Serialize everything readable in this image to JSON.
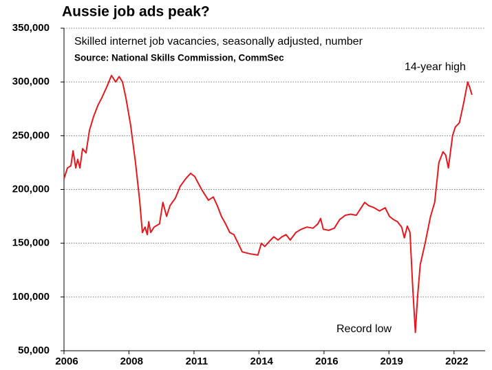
{
  "chart_data": {
    "type": "line",
    "title": "Aussie job ads peak?",
    "subtitle": "Skilled internet job vacancies, seasonally adjusted, number",
    "source": "Source: National Skills Commission, CommSec",
    "annotations": [
      "14-year high",
      "Record low"
    ],
    "grid": true,
    "xlim": [
      2006,
      2023.2
    ],
    "xticks": [
      2006,
      {
        "value": 2008.65,
        "label": "2008"
      },
      {
        "value": 2011.31,
        "label": "2011"
      },
      {
        "value": 2013.96,
        "label": "2014"
      },
      {
        "value": 2016.62,
        "label": "2016"
      },
      {
        "value": 2019.27,
        "label": "2019"
      },
      {
        "value": 2021.93,
        "label": "2022"
      }
    ],
    "ylim": [
      50000,
      350000
    ],
    "yticks": [
      {
        "value": 50000,
        "label": "50,000"
      },
      {
        "value": 100000,
        "label": "100,000"
      },
      {
        "value": 150000,
        "label": "150,000"
      },
      {
        "value": 200000,
        "label": "200,000"
      },
      {
        "value": 250000,
        "label": "250,000"
      },
      {
        "value": 300000,
        "label": "300,000"
      },
      {
        "value": 350000,
        "label": "350,000"
      }
    ],
    "x": [
      2006.0,
      2006.14,
      2006.28,
      2006.37,
      2006.48,
      2006.56,
      2006.65,
      2006.76,
      2006.9,
      2007.04,
      2007.21,
      2007.38,
      2007.54,
      2007.74,
      2007.94,
      2008.11,
      2008.25,
      2008.39,
      2008.53,
      2008.72,
      2008.92,
      2009.09,
      2009.2,
      2009.31,
      2009.4,
      2009.46,
      2009.54,
      2009.68,
      2009.9,
      2010.04,
      2010.19,
      2010.33,
      2010.55,
      2010.75,
      2010.97,
      2011.17,
      2011.34,
      2011.48,
      2011.62,
      2011.76,
      2011.9,
      2012.1,
      2012.26,
      2012.43,
      2012.6,
      2012.77,
      2012.94,
      2013.11,
      2013.28,
      2013.44,
      2013.64,
      2013.92,
      2014.06,
      2014.2,
      2014.4,
      2014.57,
      2014.74,
      2014.9,
      2015.07,
      2015.24,
      2015.47,
      2015.69,
      2015.92,
      2016.17,
      2016.37,
      2016.48,
      2016.59,
      2016.81,
      2017.04,
      2017.26,
      2017.49,
      2017.71,
      2017.94,
      2018.11,
      2018.28,
      2018.44,
      2018.67,
      2018.89,
      2019.12,
      2019.29,
      2019.46,
      2019.62,
      2019.79,
      2019.9,
      2020.02,
      2020.13,
      2020.24,
      2020.35,
      2020.44,
      2020.55,
      2020.75,
      2020.97,
      2021.14,
      2021.31,
      2021.48,
      2021.59,
      2021.7,
      2021.87,
      2021.98,
      2022.15,
      2022.32,
      2022.49,
      2022.57,
      2022.66
    ],
    "series": [
      {
        "name": "Skilled internet job vacancies",
        "color": "#e8171d",
        "values": [
          210000,
          220000,
          222000,
          236000,
          220000,
          228000,
          220000,
          238000,
          234000,
          255000,
          268000,
          278000,
          285000,
          295000,
          306000,
          300000,
          305000,
          300000,
          285000,
          260000,
          225000,
          190000,
          160000,
          165000,
          158000,
          170000,
          160000,
          165000,
          168000,
          188000,
          175000,
          185000,
          192000,
          203000,
          210000,
          215000,
          212000,
          206000,
          200000,
          195000,
          190000,
          193000,
          185000,
          175000,
          168000,
          160000,
          158000,
          150000,
          142000,
          141000,
          140000,
          139000,
          150000,
          147000,
          152000,
          156000,
          153000,
          156000,
          158000,
          153000,
          160000,
          163000,
          165000,
          164000,
          168000,
          173000,
          163000,
          162000,
          164000,
          172000,
          176000,
          177000,
          176000,
          182000,
          188000,
          185000,
          183000,
          180000,
          183000,
          175000,
          172000,
          170000,
          165000,
          155000,
          166000,
          160000,
          110000,
          67000,
          100000,
          130000,
          150000,
          175000,
          188000,
          225000,
          235000,
          232000,
          220000,
          250000,
          258000,
          262000,
          280000,
          300000,
          295000,
          288000
        ]
      }
    ]
  }
}
